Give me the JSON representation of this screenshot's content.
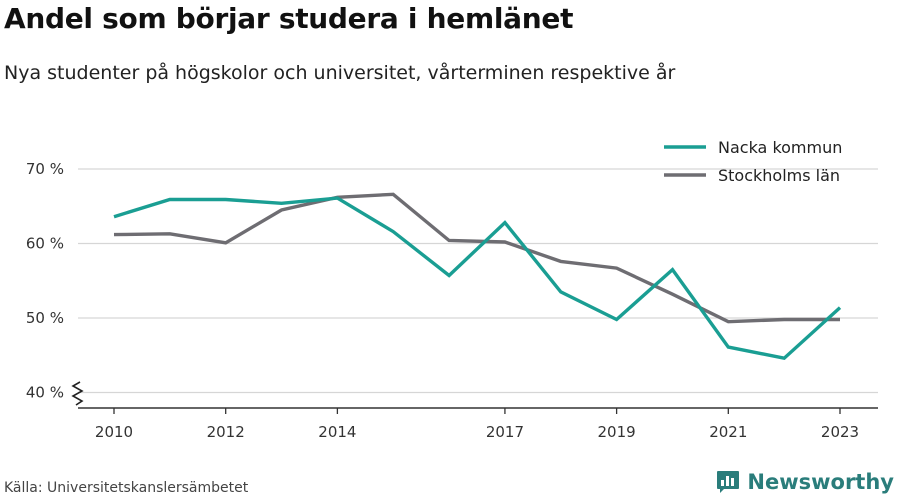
{
  "header": {
    "title": "Andel som börjar studera i hemlänet",
    "subtitle": "Nya studenter på högskolor och universitet, vårterminen respektive år"
  },
  "footer": {
    "source": "Källa: Universitetskanslersämbetet",
    "brand": "Newsworthy",
    "brand_icon": "bar-chart-logo-icon"
  },
  "colors": {
    "nacka": "#1a9e93",
    "stockholm": "#6e6d72",
    "grid": "#d6d6d6",
    "axis": "#333333",
    "brand": "#2a7d7b"
  },
  "chart_data": {
    "type": "line",
    "title": "Andel som börjar studera i hemlänet",
    "subtitle": "Nya studenter på högskolor och universitet, vårterminen respektive år",
    "xlabel": "",
    "ylabel": "",
    "x": [
      2010,
      2011,
      2012,
      2013,
      2014,
      2015,
      2016,
      2017,
      2018,
      2019,
      2020,
      2021,
      2022,
      2023
    ],
    "x_tick_labels": [
      "2010",
      "2012",
      "2014",
      "2017",
      "2019",
      "2021",
      "2023"
    ],
    "y_tick_labels": [
      "40 %",
      "50 %",
      "60 %",
      "70 %"
    ],
    "y_ticks": [
      40,
      50,
      60,
      70
    ],
    "ylim": [
      38,
      72
    ],
    "y_axis_break": true,
    "grid": true,
    "legend_position": "top-right",
    "series": [
      {
        "name": "Nacka kommun",
        "color": "#1a9e93",
        "values": [
          63.6,
          65.9,
          65.9,
          65.4,
          66.1,
          61.6,
          55.7,
          62.8,
          53.5,
          49.8,
          56.5,
          46.1,
          44.6,
          51.4
        ]
      },
      {
        "name": "Stockholms län",
        "color": "#6e6d72",
        "values": [
          61.2,
          61.3,
          60.1,
          64.5,
          66.2,
          66.6,
          60.4,
          60.2,
          57.6,
          56.7,
          53.2,
          49.5,
          49.8,
          49.8
        ]
      }
    ]
  }
}
